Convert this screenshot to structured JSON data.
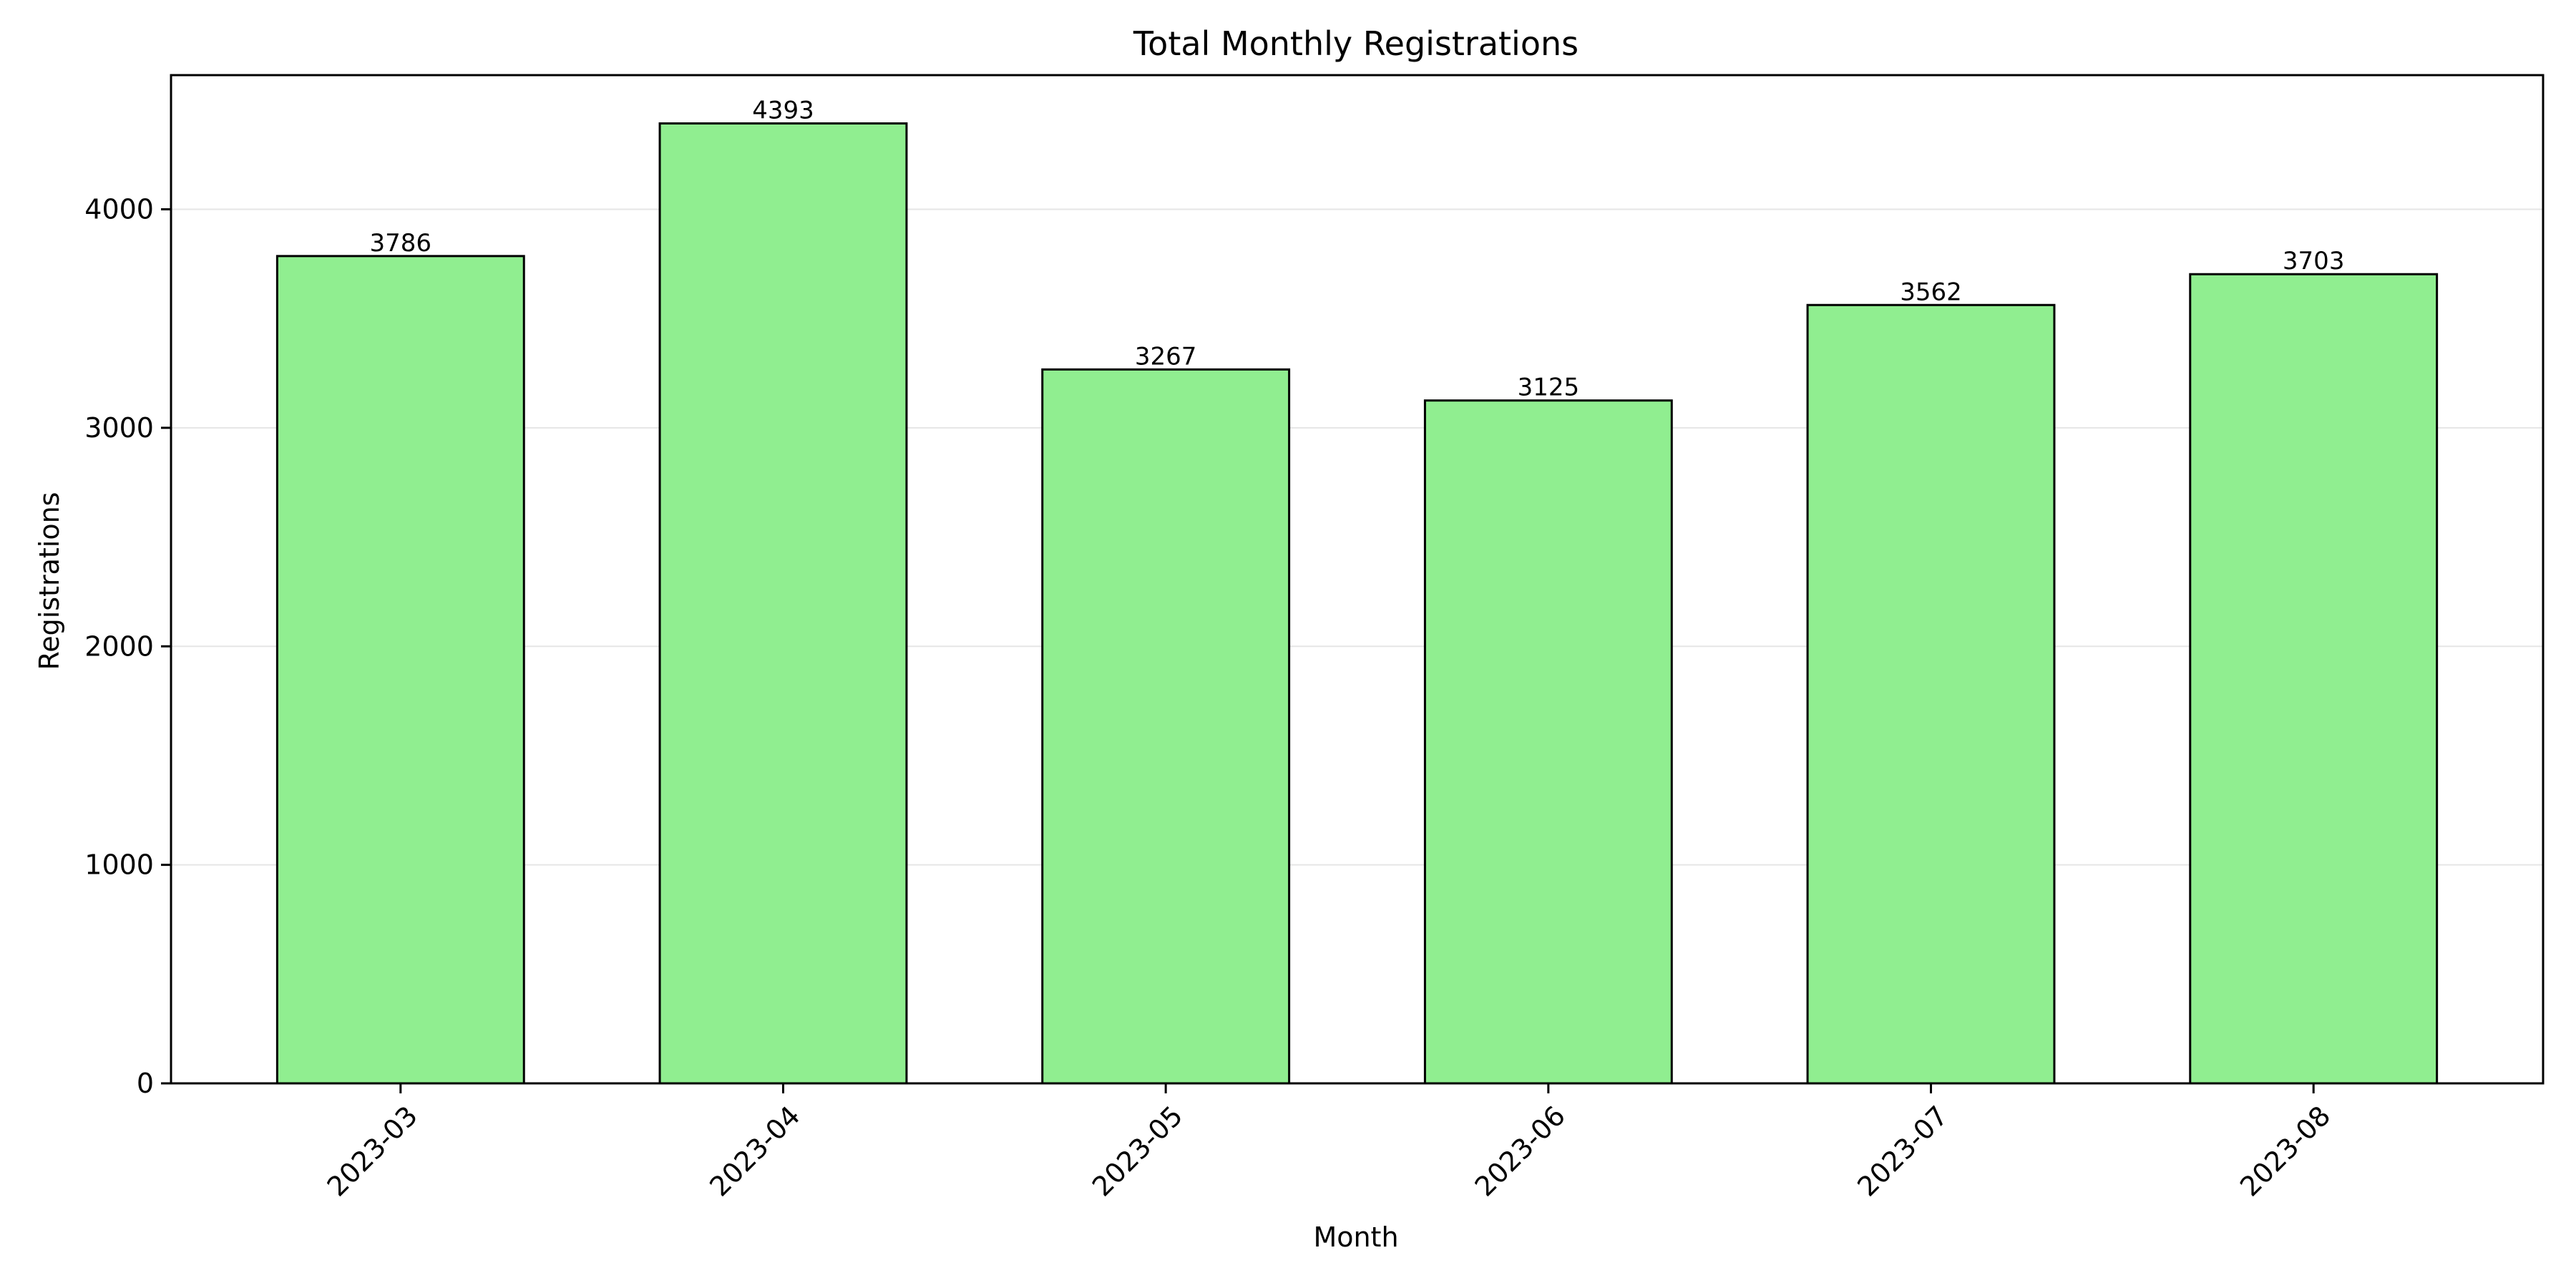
{
  "chart_data": {
    "type": "bar",
    "title": "Total Monthly Registrations",
    "xlabel": "Month",
    "ylabel": "Registrations",
    "categories": [
      "2023-03",
      "2023-04",
      "2023-05",
      "2023-06",
      "2023-07",
      "2023-08"
    ],
    "values": [
      3786,
      4393,
      3267,
      3125,
      3562,
      3703
    ],
    "data_labels": [
      "3786",
      "4393",
      "3267",
      "3125",
      "3562",
      "3703"
    ],
    "ylim": [
      0,
      4614
    ],
    "yticks": [
      0,
      1000,
      2000,
      3000,
      4000
    ],
    "ytick_labels": [
      "0",
      "1000",
      "2000",
      "3000",
      "4000"
    ],
    "grid": "y",
    "legend": "none",
    "colors": {
      "bar_fill": "#90ee90",
      "bar_edge": "#000000",
      "grid": "#e6e6e6"
    }
  }
}
